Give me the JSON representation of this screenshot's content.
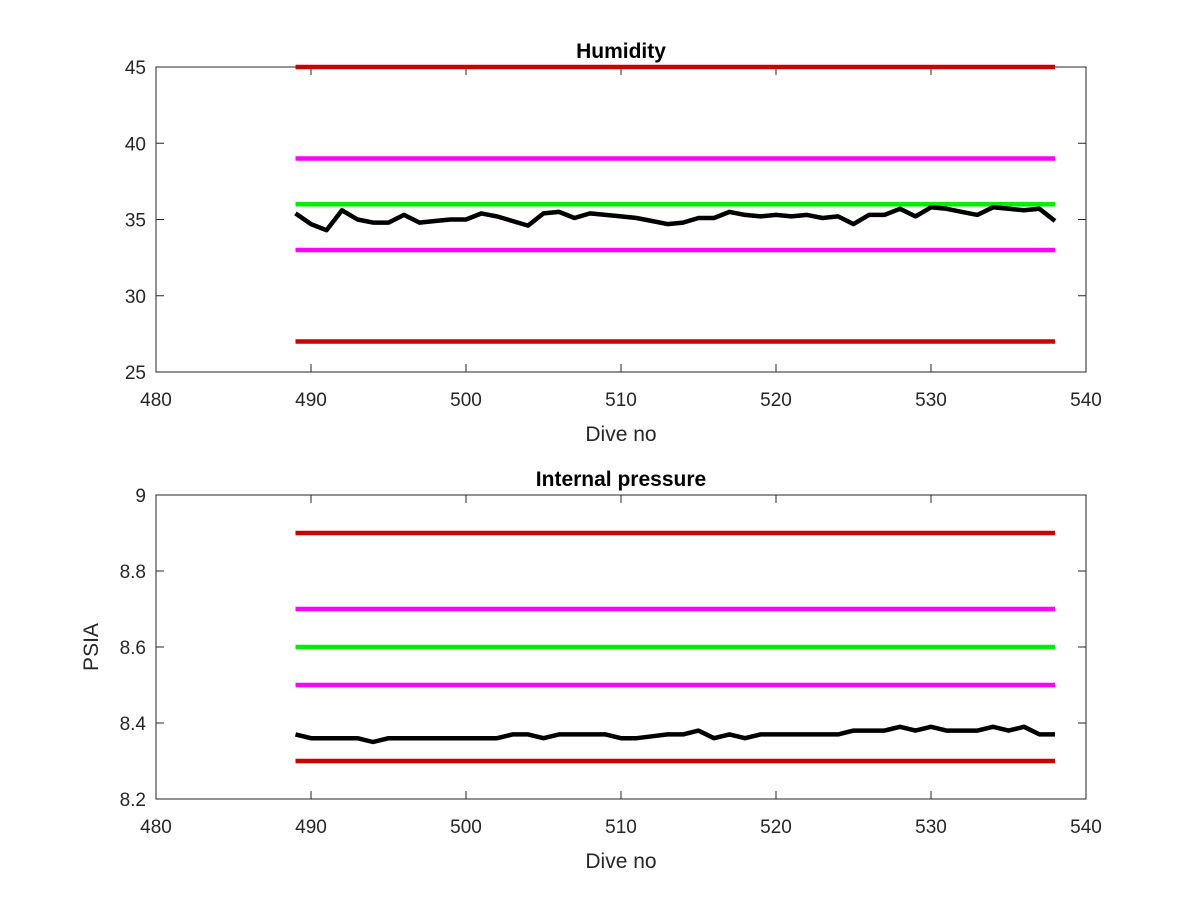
{
  "chart_data": [
    {
      "type": "line",
      "title": "Humidity",
      "xlabel": "Dive no",
      "ylabel": "",
      "xlim": [
        480,
        540
      ],
      "ylim": [
        25,
        45
      ],
      "xticks": [
        480,
        490,
        500,
        510,
        520,
        530,
        540
      ],
      "yticks": [
        25,
        30,
        35,
        40,
        45
      ],
      "grid": false,
      "legend": "none",
      "series": [
        {
          "color": "#cc0000",
          "x": [
            489,
            538
          ],
          "y": [
            45,
            45
          ]
        },
        {
          "color": "#ff00ff",
          "x": [
            489,
            538
          ],
          "y": [
            39,
            39
          ]
        },
        {
          "color": "#00ee00",
          "x": [
            489,
            538
          ],
          "y": [
            36,
            36
          ]
        },
        {
          "color": "#ff00ff",
          "x": [
            489,
            538
          ],
          "y": [
            33,
            33
          ]
        },
        {
          "color": "#cc0000",
          "x": [
            489,
            538
          ],
          "y": [
            27,
            27
          ]
        },
        {
          "color": "#000000",
          "x": [
            489,
            490,
            491,
            492,
            493,
            494,
            495,
            496,
            497,
            498,
            499,
            500,
            501,
            502,
            503,
            504,
            505,
            506,
            507,
            508,
            509,
            510,
            511,
            512,
            513,
            514,
            515,
            516,
            517,
            518,
            519,
            520,
            521,
            522,
            523,
            524,
            525,
            526,
            527,
            528,
            529,
            530,
            531,
            532,
            533,
            534,
            535,
            536,
            537,
            538
          ],
          "y": [
            35.4,
            34.7,
            34.3,
            35.6,
            35.0,
            34.8,
            34.8,
            35.3,
            34.8,
            34.9,
            35.0,
            35.0,
            35.4,
            35.2,
            34.9,
            34.6,
            35.4,
            35.5,
            35.1,
            35.4,
            35.3,
            35.2,
            35.1,
            34.9,
            34.7,
            34.8,
            35.1,
            35.1,
            35.5,
            35.3,
            35.2,
            35.3,
            35.2,
            35.3,
            35.1,
            35.2,
            34.7,
            35.3,
            35.3,
            35.7,
            35.2,
            35.8,
            35.7,
            35.5,
            35.3,
            35.8,
            35.7,
            35.6,
            35.7,
            34.9
          ]
        }
      ]
    },
    {
      "type": "line",
      "title": "Internal pressure",
      "xlabel": "Dive no",
      "ylabel": "PSIA",
      "xlim": [
        480,
        540
      ],
      "ylim": [
        8.2,
        9
      ],
      "xticks": [
        480,
        490,
        500,
        510,
        520,
        530,
        540
      ],
      "yticks": [
        8.2,
        8.4,
        8.6,
        8.8,
        9
      ],
      "grid": false,
      "legend": "none",
      "series": [
        {
          "color": "#cc0000",
          "x": [
            489,
            538
          ],
          "y": [
            8.9,
            8.9
          ]
        },
        {
          "color": "#ff00ff",
          "x": [
            489,
            538
          ],
          "y": [
            8.7,
            8.7
          ]
        },
        {
          "color": "#00ee00",
          "x": [
            489,
            538
          ],
          "y": [
            8.6,
            8.6
          ]
        },
        {
          "color": "#ff00ff",
          "x": [
            489,
            538
          ],
          "y": [
            8.5,
            8.5
          ]
        },
        {
          "color": "#cc0000",
          "x": [
            489,
            538
          ],
          "y": [
            8.3,
            8.3
          ]
        },
        {
          "color": "#000000",
          "x": [
            489,
            490,
            491,
            492,
            493,
            494,
            495,
            496,
            497,
            498,
            499,
            500,
            501,
            502,
            503,
            504,
            505,
            506,
            507,
            508,
            509,
            510,
            511,
            512,
            513,
            514,
            515,
            516,
            517,
            518,
            519,
            520,
            521,
            522,
            523,
            524,
            525,
            526,
            527,
            528,
            529,
            530,
            531,
            532,
            533,
            534,
            535,
            536,
            537,
            538
          ],
          "y": [
            8.37,
            8.36,
            8.36,
            8.36,
            8.36,
            8.35,
            8.36,
            8.36,
            8.36,
            8.36,
            8.36,
            8.36,
            8.36,
            8.36,
            8.37,
            8.37,
            8.36,
            8.37,
            8.37,
            8.37,
            8.37,
            8.36,
            8.36,
            8.365,
            8.37,
            8.37,
            8.38,
            8.36,
            8.37,
            8.36,
            8.37,
            8.37,
            8.37,
            8.37,
            8.37,
            8.37,
            8.38,
            8.38,
            8.38,
            8.39,
            8.38,
            8.39,
            8.38,
            8.38,
            8.38,
            8.39,
            8.38,
            8.39,
            8.37,
            8.37
          ]
        }
      ]
    }
  ]
}
